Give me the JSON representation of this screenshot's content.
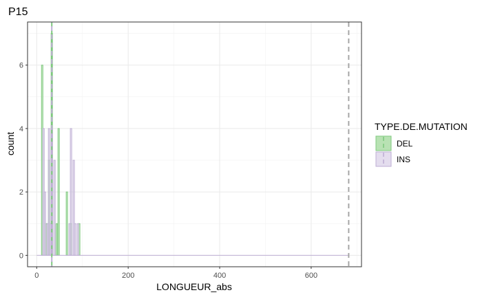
{
  "chart_data": {
    "type": "histogram",
    "title": "P15",
    "xlabel": "LONGUEUR_abs",
    "ylabel": "count",
    "xlim": [
      -20,
      710
    ],
    "ylim": [
      -0.36,
      7.36
    ],
    "x_ticks": [
      0,
      200,
      400,
      600
    ],
    "y_ticks": [
      0,
      2,
      4,
      6
    ],
    "grid": true,
    "bin_width": 3,
    "legend": {
      "title": "TYPE.DE.MUTATION",
      "position": "right",
      "entries": [
        "DEL",
        "INS"
      ]
    },
    "series": [
      {
        "name": "DEL",
        "color": "#7fc97f",
        "fill": "#a6dba0",
        "bins": [
          {
            "x": 12,
            "count": 6
          },
          {
            "x": 21,
            "count": 1
          },
          {
            "x": 27,
            "count": 3
          },
          {
            "x": 33,
            "count": 7
          },
          {
            "x": 44,
            "count": 1
          },
          {
            "x": 48,
            "count": 4
          },
          {
            "x": 66,
            "count": 2
          },
          {
            "x": 75,
            "count": 1
          },
          {
            "x": 93,
            "count": 1
          }
        ]
      },
      {
        "name": "INS",
        "color": "#beaed4",
        "fill": "#ddd5ea",
        "bins": [
          {
            "x": 15,
            "count": 4
          },
          {
            "x": 18,
            "count": 2
          },
          {
            "x": 24,
            "count": 1
          },
          {
            "x": 27,
            "count": 4
          },
          {
            "x": 30,
            "count": 1
          },
          {
            "x": 33,
            "count": 4
          },
          {
            "x": 39,
            "count": 3
          },
          {
            "x": 72,
            "count": 1
          },
          {
            "x": 75,
            "count": 4
          },
          {
            "x": 81,
            "count": 3
          },
          {
            "x": 84,
            "count": 1
          },
          {
            "x": 90,
            "count": 1
          }
        ]
      }
    ],
    "vlines": [
      {
        "x": 33,
        "color": "#7fc97f",
        "style": "dashed"
      },
      {
        "x": 33,
        "color": "#beaed4",
        "style": "dashed"
      },
      {
        "x": 682,
        "color": "#a6a6a6",
        "style": "dashed"
      }
    ],
    "baseline_to": 682
  }
}
